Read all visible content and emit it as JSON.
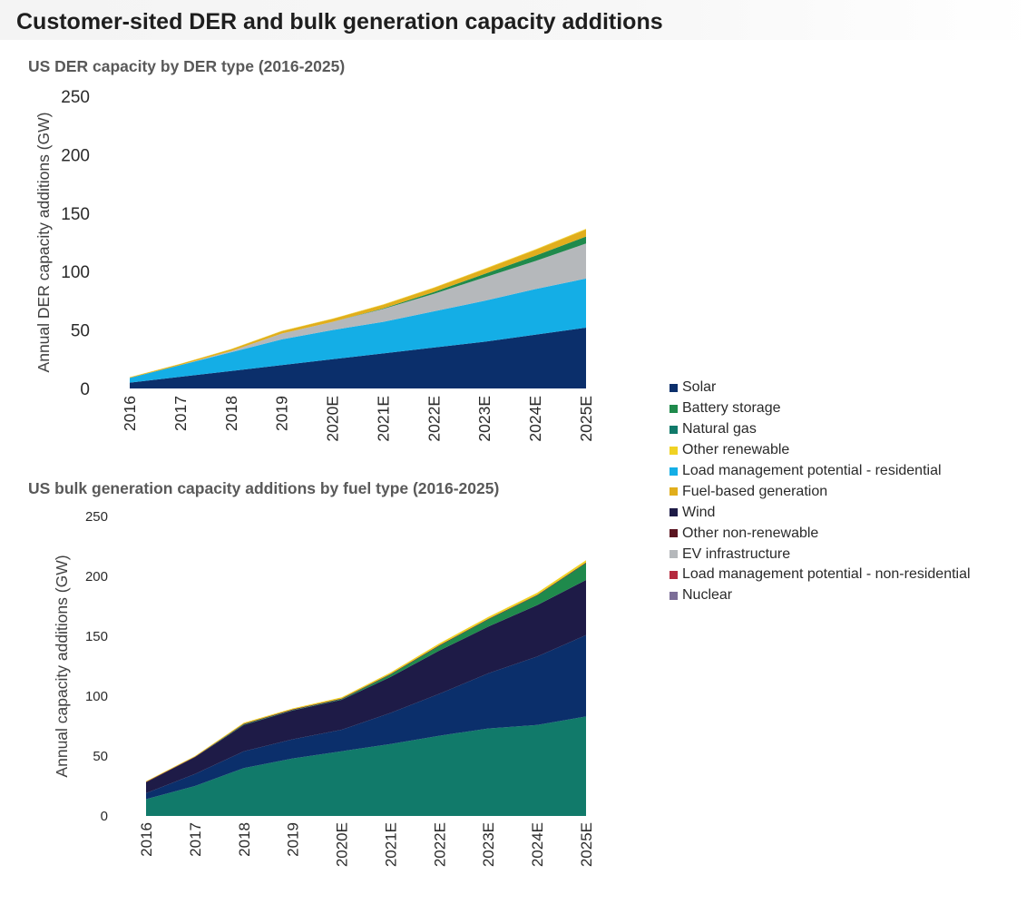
{
  "page_title": "Customer-sited DER and bulk generation capacity additions",
  "legend": [
    {
      "key": "solar",
      "label": "Solar",
      "color": "#0b2f6b"
    },
    {
      "key": "battery",
      "label": "Battery storage",
      "color": "#1f8a4c"
    },
    {
      "key": "gas",
      "label": "Natural gas",
      "color": "#117a6a"
    },
    {
      "key": "other_renew",
      "label": "Other renewable",
      "color": "#f0d224"
    },
    {
      "key": "lm_res",
      "label": "Load management potential - residential",
      "color": "#14aee6"
    },
    {
      "key": "fuel",
      "label": "Fuel-based generation",
      "color": "#e1ae1c"
    },
    {
      "key": "wind",
      "label": "Wind",
      "color": "#1e1b47"
    },
    {
      "key": "other_nonrenew",
      "label": "Other non-renewable",
      "color": "#5a1420"
    },
    {
      "key": "ev",
      "label": "EV infrastructure",
      "color": "#b5b8bb"
    },
    {
      "key": "lm_nonres",
      "label": "Load management potential - non-residential",
      "color": "#b52a3e"
    },
    {
      "key": "nuclear",
      "label": "Nuclear",
      "color": "#7c6e98"
    }
  ],
  "chart_data": [
    {
      "type": "area",
      "stacked": true,
      "title": "US DER capacity by DER type (2016-2025)",
      "ylabel": "Annual DER capacity additions (GW)",
      "xlabel": "",
      "ylim": [
        0,
        250
      ],
      "yticks": [
        0,
        50,
        100,
        150,
        200,
        250
      ],
      "categories": [
        "2016",
        "2017",
        "2018",
        "2019",
        "2020E",
        "2021E",
        "2022E",
        "2023E",
        "2024E",
        "2025E"
      ],
      "series": [
        {
          "key": "solar",
          "values": [
            5,
            10,
            15,
            20,
            25,
            30,
            35,
            40,
            46,
            52
          ]
        },
        {
          "key": "lm_res",
          "values": [
            4,
            10,
            16,
            22,
            25,
            27,
            31,
            35,
            39,
            42
          ]
        },
        {
          "key": "ev",
          "values": [
            0,
            0,
            1,
            5,
            7,
            11,
            15,
            20,
            24,
            30
          ]
        },
        {
          "key": "lm_nonres",
          "values": [
            0,
            0,
            0,
            0,
            0,
            0,
            0,
            0,
            0,
            0
          ]
        },
        {
          "key": "battery",
          "values": [
            0,
            0,
            0,
            0,
            0,
            0.5,
            1.5,
            3,
            4.5,
            6
          ]
        },
        {
          "key": "fuel",
          "values": [
            0.5,
            1,
            1.5,
            2,
            2.5,
            3,
            3.5,
            4,
            5,
            6
          ]
        },
        {
          "key": "other_renew",
          "values": [
            0.2,
            0.2,
            0.3,
            0.3,
            0.3,
            0.4,
            0.4,
            0.5,
            0.5,
            0.6
          ]
        }
      ]
    },
    {
      "type": "area",
      "stacked": true,
      "title": "US bulk generation capacity additions by fuel type (2016-2025)",
      "ylabel": "Annual capacity additions (GW)",
      "xlabel": "",
      "ylim": [
        0,
        250
      ],
      "yticks": [
        0,
        50,
        100,
        150,
        200,
        250
      ],
      "categories": [
        "2016",
        "2017",
        "2018",
        "2019",
        "2020E",
        "2021E",
        "2022E",
        "2023E",
        "2024E",
        "2025E"
      ],
      "series": [
        {
          "key": "gas",
          "values": [
            14,
            25,
            40,
            48,
            54,
            60,
            67,
            73,
            76,
            83
          ]
        },
        {
          "key": "solar",
          "values": [
            5,
            10,
            14,
            16,
            18,
            26,
            35,
            46,
            57,
            68
          ]
        },
        {
          "key": "wind",
          "values": [
            9,
            14,
            22,
            24,
            25,
            30,
            36,
            39,
            43,
            46
          ]
        },
        {
          "key": "battery",
          "values": [
            0,
            0,
            0.5,
            0.5,
            0.5,
            2,
            4,
            6,
            8,
            14
          ]
        },
        {
          "key": "nuclear",
          "values": [
            0,
            0,
            0,
            0,
            0,
            0,
            0,
            0,
            0,
            0
          ]
        },
        {
          "key": "other_nonrenew",
          "values": [
            0.5,
            0.5,
            0.5,
            0.5,
            0.5,
            0.5,
            0.5,
            0.5,
            0.5,
            0.5
          ]
        },
        {
          "key": "other_renew",
          "values": [
            0.5,
            0.5,
            0.8,
            0.8,
            1,
            1.2,
            1.5,
            1.6,
            1.8,
            2
          ]
        }
      ]
    }
  ]
}
